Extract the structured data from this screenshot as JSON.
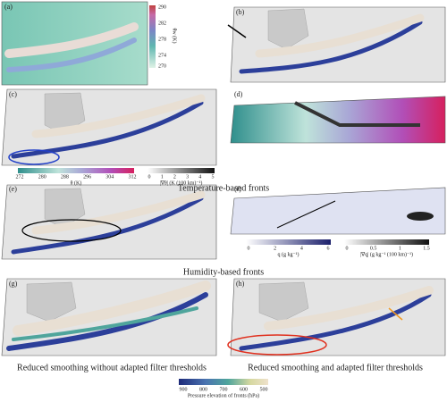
{
  "panels": [
    {
      "label": "(a)"
    },
    {
      "label": "(b)"
    },
    {
      "label": "(c)"
    },
    {
      "label": "(d)"
    },
    {
      "label": "(e)"
    },
    {
      "label": "(f)"
    },
    {
      "label": "(g)"
    },
    {
      "label": "(h)"
    }
  ],
  "colorbars": {
    "theta_w": {
      "label": "θw (K)",
      "ticks": [
        "290",
        "282",
        "278",
        "274",
        "270"
      ]
    },
    "theta": {
      "label": "θ (K)",
      "ticks": [
        "272",
        "280",
        "288",
        "296",
        "304",
        "312"
      ]
    },
    "grad_theta": {
      "label": "|∇θ| (K (100 km)⁻¹)",
      "ticks": [
        "0",
        "1",
        "2",
        "3",
        "4",
        "5"
      ]
    },
    "q": {
      "label": "q (g kg⁻¹)",
      "ticks": [
        "0",
        "2",
        "4",
        "6"
      ]
    },
    "grad_q": {
      "label": "|∇q| (g kg⁻¹ (100 km)⁻¹)",
      "ticks": [
        "0",
        "0.5",
        "1",
        "1.5"
      ]
    },
    "pressure": {
      "label": "Pressure elevation of fronts (hPa)",
      "ticks": [
        "900",
        "800",
        "700",
        "600",
        "500"
      ]
    }
  },
  "captions": {
    "temperature": "Temperature-based fronts",
    "humidity": "Humidity-based fronts",
    "without": "Reduced smoothing without adapted filter thresholds",
    "with": "Reduced smoothing and adapted filter thresholds"
  }
}
